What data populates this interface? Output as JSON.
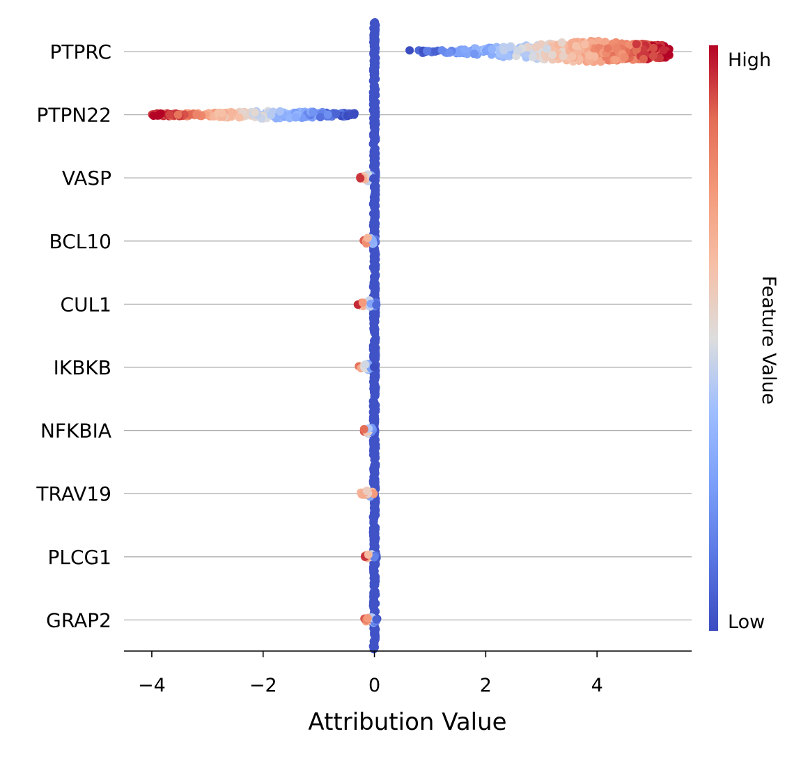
{
  "chart_data": {
    "type": "scatter",
    "subtype": "beeswarm",
    "xlabel": "Attribution Value",
    "xlim": [
      -4.5,
      5.7
    ],
    "xticks": [
      -4,
      -2,
      0,
      2,
      4
    ],
    "xtick_labels": [
      "−4",
      "−2",
      "0",
      "2",
      "4"
    ],
    "grid": "horizontal lines at each feature",
    "colormap": "coolwarm",
    "colorbar": {
      "title": "Feature Value",
      "high_label": "High",
      "low_label": "Low",
      "low_color": "#3b4cc0",
      "mid_color": "#dddddd",
      "high_color": "#b40426"
    },
    "features": [
      {
        "name": "PTPRC",
        "min": 0.45,
        "max": 5.3,
        "dense_center": 3.9,
        "direction": "high_positive"
      },
      {
        "name": "PTPN22",
        "min": -4.0,
        "max": -0.35,
        "dense_center": -1.8,
        "direction": "high_negative"
      },
      {
        "name": "VASP",
        "min": -0.28,
        "max": 0.0,
        "dense_center": -0.1,
        "direction": "high_negative"
      },
      {
        "name": "BCL10",
        "min": -0.22,
        "max": 0.05,
        "dense_center": -0.08,
        "direction": "high_negative"
      },
      {
        "name": "CUL1",
        "min": -0.3,
        "max": 0.05,
        "dense_center": -0.1,
        "direction": "high_negative"
      },
      {
        "name": "IKBKB",
        "min": -0.32,
        "max": 0.0,
        "dense_center": -0.12,
        "direction": "high_negative"
      },
      {
        "name": "NFKBIA",
        "min": -0.22,
        "max": 0.0,
        "dense_center": -0.08,
        "direction": "high_negative"
      },
      {
        "name": "TRAV19",
        "min": -0.25,
        "max": 0.0,
        "dense_center": -0.1,
        "direction": "mixed"
      },
      {
        "name": "PLCG1",
        "min": -0.2,
        "max": 0.05,
        "dense_center": -0.07,
        "direction": "high_negative"
      },
      {
        "name": "GRAP2",
        "min": -0.2,
        "max": 0.05,
        "dense_center": -0.06,
        "direction": "high_negative"
      }
    ],
    "zero_cluster_value": 0.0,
    "legend": "colorbar right"
  }
}
